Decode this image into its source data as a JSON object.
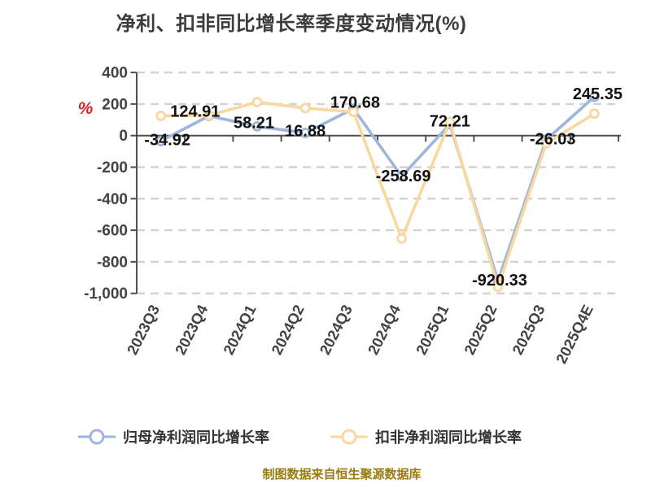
{
  "chart_data": {
    "type": "line",
    "title": "净利、扣非同比增长率季度变动情况(%)",
    "categories": [
      "2023Q3",
      "2023Q4",
      "2024Q1",
      "2024Q2",
      "2024Q3",
      "2024Q4",
      "2025Q1",
      "2025Q2",
      "2025Q3",
      "2025Q4E"
    ],
    "series": [
      {
        "name": "归母净利润同比增长率",
        "color": "#9eb5dd",
        "marker": "circle",
        "data_labels": true,
        "values": [
          -34.92,
          124.91,
          58.21,
          16.88,
          170.68,
          -258.69,
          72.21,
          -920.33,
          -26.03,
          245.35
        ]
      },
      {
        "name": "扣非净利润同比增长率",
        "color": "#f8d8a0",
        "marker": "circle",
        "data_labels": false,
        "values": [
          125,
          128,
          212,
          174,
          150,
          -652,
          88,
          -958,
          -50,
          139
        ]
      }
    ],
    "data_label_texts": [
      "-34.92",
      "124.91",
      "58.21",
      "16.88",
      "170.68",
      "-258.69",
      "72.21",
      "-920.33",
      "-26.03",
      "245.35"
    ],
    "y_axis": {
      "unit": "%",
      "unit_color": "#d92121",
      "min": -1000,
      "max": 400,
      "step": 200,
      "tick_labels": [
        "400",
        "200",
        "0",
        "-200",
        "-400",
        "-600",
        "-800",
        "-1,000"
      ]
    },
    "x_axis": {
      "label_rotation": -63
    },
    "grid": {
      "style": "dashed",
      "color": "#d2d2d2"
    },
    "axis_color": "#4f4f4f",
    "label_color": "#111111",
    "legend_position": "bottom"
  },
  "footer": {
    "source_note": "制图数据来自恒生聚源数据库",
    "color": "#9a7b10"
  }
}
